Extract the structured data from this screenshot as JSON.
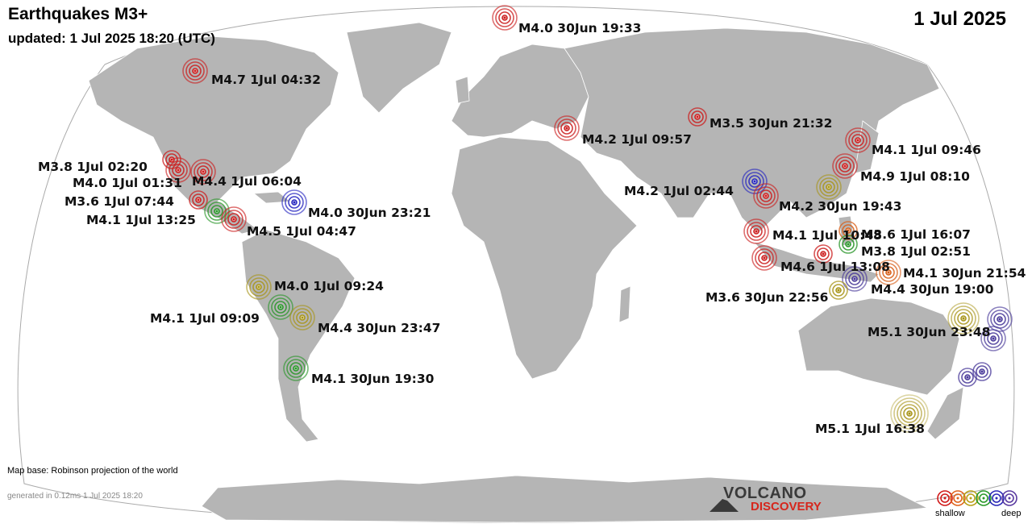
{
  "header": {
    "title": "Earthquakes M3+",
    "updated": "updated:  1 Jul 2025 18:20 (UTC)",
    "date": "1 Jul 2025"
  },
  "footer": {
    "map_base": "Map base: Robinson projection of the world",
    "generated": "generated in 0.12ms  1 Jul 2025 18:20"
  },
  "logo": {
    "top": "VOLCANO",
    "bottom": "DISCOVERY"
  },
  "legend": {
    "shallow_label": "shallow",
    "deep_label": "deep",
    "colors": [
      "#d11a1a",
      "#e0641c",
      "#b8a018",
      "#2a9a2a",
      "#2a2ab8",
      "#5a3aa0"
    ]
  },
  "depth_colors": {
    "red": "#cc1f1f",
    "orange": "#d8601a",
    "olive": "#a8951a",
    "green": "#2a962a",
    "blue": "#2828c0",
    "purple": "#4a3a9a"
  },
  "labels": [
    "M4.0 30Jun 19:33",
    "M4.7  1Jul 04:32",
    "M3.5 30Jun 21:32",
    "M4.2  1Jul 09:57",
    "M4.1  1Jul 09:46",
    "M3.8  1Jul 02:20",
    "M4.9  1Jul 08:10",
    "M4.0  1Jul 01:31",
    "M4.4  1Jul 06:04",
    "M4.2  1Jul 02:44",
    "M3.6  1Jul 07:44",
    "M4.2 30Jun 19:43",
    "M4.0 30Jun 23:21",
    "M4.1  1Jul 13:25",
    "M4.5  1Jul 04:47",
    "M4.1  1Jul 10:48",
    "M3.6  1Jul 16:07",
    "M3.8  1Jul 02:51",
    "M4.6  1Jul 13:08",
    "M4.1 30Jun 21:54",
    "M4.0  1Jul 09:24",
    "M4.4 30Jun 19:00",
    "M3.6 30Jun 22:56",
    "M4.1  1Jul 09:09",
    "M5.1 30Jun 23:48",
    "M4.4 30Jun 23:47",
    "M4.1 30Jun 19:30",
    "M5.1  1Jul 16:38"
  ]
}
